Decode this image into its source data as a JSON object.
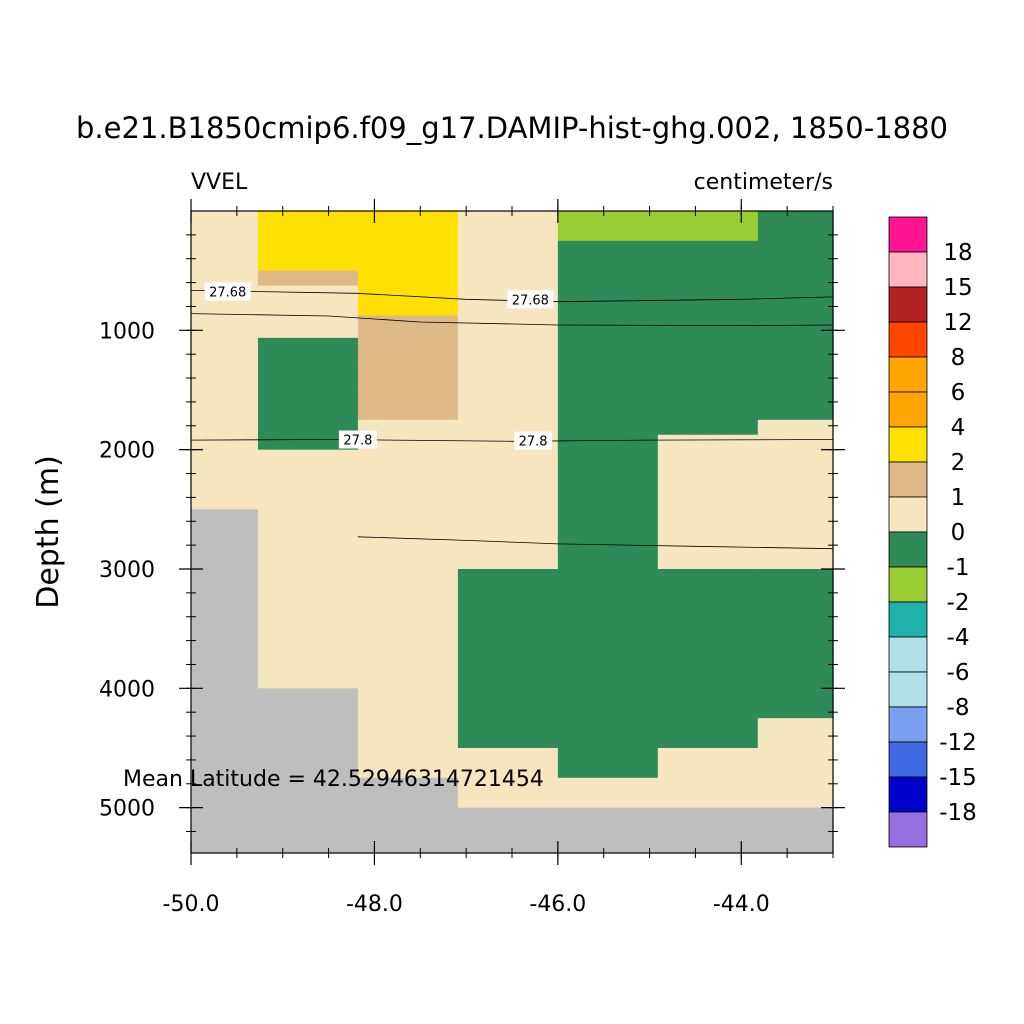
{
  "chart_data": {
    "type": "heatmap",
    "title": "b.e21.B1850cmip6.f09_g17.DAMIP-hist-ghg.002, 1850-1880",
    "left_subtitle": "VVEL",
    "right_subtitle": "centimeter/s",
    "ylabel": "Depth (m)",
    "xlabel": "",
    "xlim": [
      -50.0,
      -43.0
    ],
    "ylim": [
      5380,
      0
    ],
    "x_ticks": [
      -50.0,
      -48.0,
      -46.0,
      -44.0
    ],
    "x_tick_labels": [
      "-50.0",
      "-48.0",
      "-46.0",
      "-44.0"
    ],
    "y_ticks": [
      1000,
      2000,
      3000,
      4000,
      5000
    ],
    "y_tick_labels": [
      "1000",
      "2000",
      "3000",
      "4000",
      "5000"
    ],
    "annotation": "Mean Latitude = 42.52946314721454",
    "x_edges": [
      -50.0,
      -49.27,
      -48.18,
      -47.09,
      -46.0,
      -44.91,
      -43.82,
      -43.0
    ],
    "y_edges": [
      0,
      250,
      500,
      625,
      750,
      875,
      1000,
      1063,
      1250,
      1500,
      1750,
      1875,
      2000,
      2125,
      2500,
      2750,
      3000,
      3500,
      4000,
      4250,
      4500,
      4750,
      5000,
      5380
    ],
    "color_levels": [
      "18",
      "15",
      "12",
      "8",
      "6",
      "4",
      "2",
      "1",
      "0",
      "-1",
      "-2",
      "-4",
      "-6",
      "-8",
      "-12",
      "-15",
      "-18"
    ],
    "colorbar_colors": [
      "#ff1493",
      "#ffb6c1",
      "#b22222",
      "#ff4500",
      "#ffa500",
      "#ffa500",
      "#ffe000",
      "#deb887",
      "#f5e6c0",
      "#2e8b57",
      "#9acd32",
      "#20b2aa",
      "#b0e0e6",
      "#b0e0e6",
      "#7a9ff0",
      "#4169e1",
      "#0000cd",
      "#9370db"
    ],
    "land_color": "#bebebe",
    "contour_labels": [
      "27.68",
      "27.68",
      "27.8",
      "27.8"
    ],
    "grid": false,
    "legend": "right"
  }
}
